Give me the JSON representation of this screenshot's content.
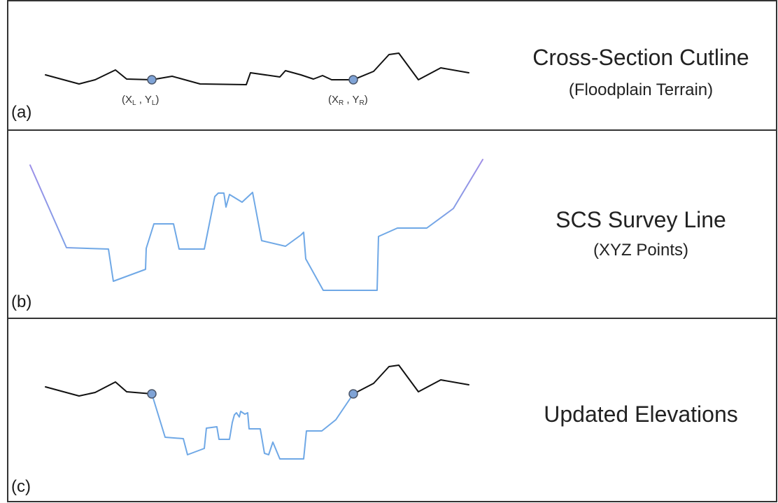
{
  "panels": [
    {
      "id": "a",
      "label": "(a)",
      "title": "Cross-Section Cutline",
      "subtitle": "(Floodplain Terrain)"
    },
    {
      "id": "b",
      "label": "(b)",
      "title": "SCS Survey Line",
      "subtitle": "(XYZ Points)"
    },
    {
      "id": "c",
      "label": "(c)",
      "title": "Updated Elevations",
      "subtitle": ""
    }
  ],
  "endpoints": {
    "left": {
      "x": "X",
      "x_sub": "L",
      "y": "Y",
      "y_sub": "L"
    },
    "right": {
      "x": "X",
      "x_sub": "R",
      "y": "Y",
      "y_sub": "R"
    }
  },
  "colors": {
    "terrain_line": "#111111",
    "survey_line": "#6fa8e6",
    "survey_line_end": "#9c8fe8",
    "endpoint_fill": "#7fa3d6",
    "frame": "#333333"
  }
}
